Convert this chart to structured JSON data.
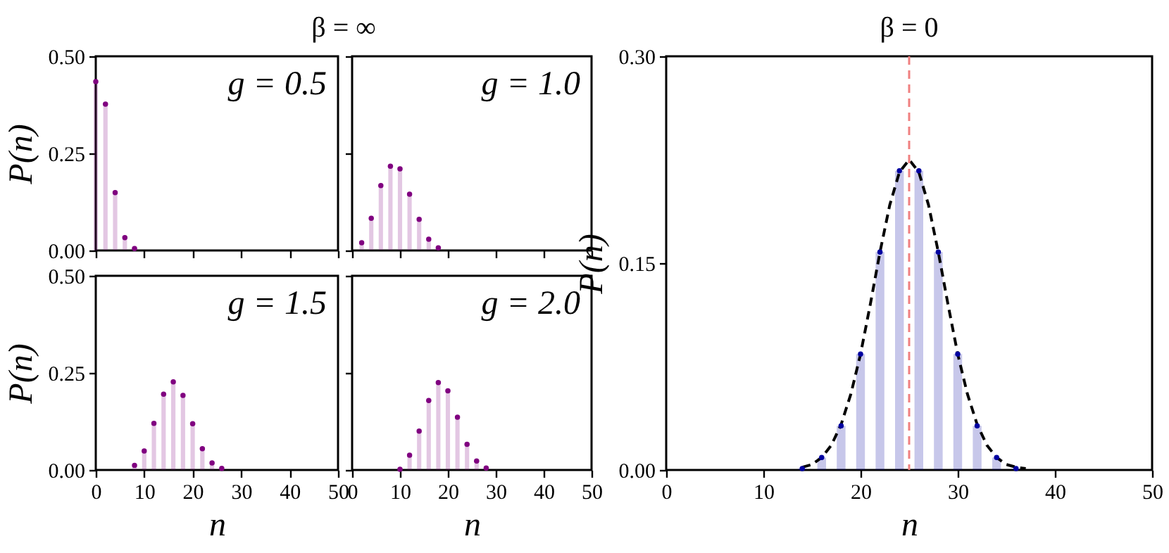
{
  "chart_data": [
    {
      "type": "lollipop",
      "title": "β = ∞",
      "ylabel": "P(n)",
      "annotations": [
        "g = 0.5"
      ],
      "xlim": [
        0,
        50
      ],
      "xticks": [
        0,
        10,
        20,
        30,
        40,
        50
      ],
      "ylim": [
        0,
        0.5
      ],
      "yticks": [
        {
          "value": 0,
          "label": "0.00"
        },
        {
          "value": 0.25,
          "label": "0.25"
        },
        {
          "value": 0.5,
          "label": "0.50"
        }
      ],
      "tick_labels": "y",
      "marker": "circle",
      "series": [
        {
          "color": "#800080",
          "x": [
            0,
            2,
            4,
            6,
            8
          ],
          "values": [
            0.435,
            0.377,
            0.149,
            0.033,
            0.005
          ]
        }
      ]
    },
    {
      "type": "lollipop",
      "annotations": [
        "g = 1.0"
      ],
      "xlim": [
        0,
        50
      ],
      "xticks": [
        0,
        10,
        20,
        30,
        40,
        50
      ],
      "ylim": [
        0,
        0.5
      ],
      "yticks": [
        0,
        0.25,
        0.5
      ],
      "tick_labels": false,
      "marker": "circle",
      "series": [
        {
          "color": "#800080",
          "x": [
            2,
            4,
            6,
            8,
            10,
            12,
            14,
            16,
            18
          ],
          "values": [
            0.02,
            0.083,
            0.167,
            0.217,
            0.21,
            0.145,
            0.08,
            0.029,
            0.007
          ]
        }
      ]
    },
    {
      "type": "lollipop",
      "xlabel": "n",
      "ylabel": "P(n)",
      "annotations": [
        "g = 1.5"
      ],
      "xlim": [
        0,
        50
      ],
      "xticks": [
        0,
        10,
        20,
        30,
        40,
        50
      ],
      "ylim": [
        0,
        0.5
      ],
      "yticks": [
        {
          "value": 0,
          "label": "0.00"
        },
        {
          "value": 0.25,
          "label": "0.25"
        },
        {
          "value": 0.5,
          "label": "0.50"
        }
      ],
      "marker": "circle",
      "series": [
        {
          "color": "#800080",
          "x": [
            8,
            10,
            12,
            14,
            16,
            18,
            20,
            22,
            24,
            26
          ],
          "values": [
            0.012,
            0.049,
            0.12,
            0.195,
            0.227,
            0.192,
            0.119,
            0.055,
            0.018,
            0.004
          ]
        }
      ]
    },
    {
      "type": "lollipop",
      "xlabel": "n",
      "annotations": [
        "g = 2.0"
      ],
      "xlim": [
        0,
        50
      ],
      "xticks": [
        0,
        10,
        20,
        30,
        40,
        50
      ],
      "ylim": [
        0,
        0.5
      ],
      "yticks": [
        0,
        0.25,
        0.5
      ],
      "tick_labels": "x",
      "marker": "circle",
      "series": [
        {
          "color": "#800080",
          "x": [
            10,
            12,
            14,
            16,
            18,
            20,
            22,
            24,
            26,
            28
          ],
          "values": [
            0.002,
            0.038,
            0.1,
            0.179,
            0.225,
            0.204,
            0.136,
            0.066,
            0.023,
            0.005
          ]
        }
      ]
    },
    {
      "type": "lollipop",
      "title": "β = 0",
      "xlabel": "n",
      "ylabel": "P(n)",
      "xlim": [
        0,
        50
      ],
      "xticks": [
        0,
        10,
        20,
        30,
        40,
        50
      ],
      "ylim": [
        0,
        0.3
      ],
      "yticks": [
        {
          "value": 0,
          "label": "0.00"
        },
        {
          "value": 0.15,
          "label": "0.15"
        },
        {
          "value": 0.3,
          "label": "0.30"
        }
      ],
      "marker": "circle",
      "ref_lines": [
        {
          "axis": "x",
          "value": 25,
          "color": "#f08080",
          "line_style": "dashed"
        }
      ],
      "series": [
        {
          "color": "#0000a0",
          "x": [
            14,
            16,
            18,
            20,
            22,
            24,
            26,
            28,
            30,
            32,
            34,
            36
          ],
          "values": [
            0.001,
            0.009,
            0.032,
            0.084,
            0.158,
            0.217,
            0.217,
            0.158,
            0.084,
            0.032,
            0.009,
            0.001
          ]
        },
        {
          "type": "line",
          "color": "#000000",
          "line_style": "dashed",
          "marker": "none",
          "x": [
            14,
            15,
            16,
            17,
            18,
            19,
            20,
            21,
            22,
            23,
            24,
            25,
            26,
            27,
            28,
            29,
            30,
            31,
            32,
            33,
            34,
            35,
            36,
            37
          ],
          "values": [
            0.002,
            0.004,
            0.009,
            0.018,
            0.033,
            0.055,
            0.084,
            0.12,
            0.158,
            0.192,
            0.216,
            0.225,
            0.216,
            0.192,
            0.158,
            0.12,
            0.084,
            0.055,
            0.033,
            0.018,
            0.009,
            0.004,
            0.002,
            0.001
          ]
        }
      ]
    }
  ]
}
